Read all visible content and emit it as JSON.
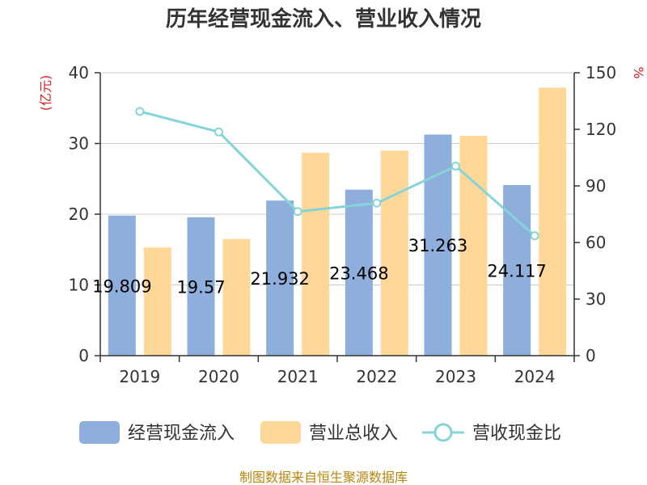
{
  "chart_data": {
    "type": "bar",
    "title": "历年经营现金流入、营业收入情况",
    "categories": [
      "2019",
      "2020",
      "2021",
      "2022",
      "2023",
      "2024"
    ],
    "series": [
      {
        "name": "经营现金流入",
        "type": "bar",
        "axis": "left",
        "color": "#8eaedb",
        "values": [
          19.809,
          19.57,
          21.932,
          23.468,
          31.263,
          24.117
        ],
        "labels": [
          "19.809",
          "19.57",
          "21.932",
          "23.468",
          "31.263",
          "24.117"
        ]
      },
      {
        "name": "营业总收入",
        "type": "bar",
        "axis": "left",
        "color": "#ffd899",
        "values": [
          15.3,
          16.5,
          28.7,
          29.0,
          31.1,
          37.9
        ]
      },
      {
        "name": "营收现金比",
        "type": "line",
        "axis": "right",
        "color": "#84d4d8",
        "values": [
          129.5,
          118.6,
          76.4,
          80.9,
          100.5,
          63.6
        ]
      }
    ],
    "left_axis": {
      "unit": "(亿元)",
      "ylim": [
        0,
        40
      ],
      "ticks": [
        0,
        10,
        20,
        30,
        40
      ]
    },
    "right_axis": {
      "unit": "%",
      "ylim": [
        0,
        150
      ],
      "ticks": [
        0,
        30,
        60,
        90,
        120,
        150
      ]
    },
    "grid": true,
    "legend": "bottom"
  },
  "source": "制图数据来自恒生聚源数据库"
}
